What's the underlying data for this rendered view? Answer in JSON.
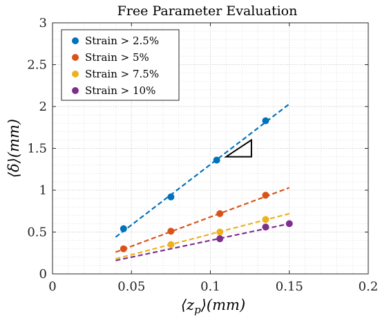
{
  "chart_data": {
    "type": "scatter",
    "title": "Free Parameter Evaluation",
    "xlabel": "⟨z_p⟩(mm)",
    "ylabel": "⟨δ⟩(mm)",
    "xlim": [
      0,
      0.2
    ],
    "ylim": [
      0,
      3
    ],
    "x_ticks": [
      "0",
      "0.05",
      "0.1",
      "0.15",
      "0.2"
    ],
    "y_ticks": [
      "0",
      "0.5",
      "1",
      "1.5",
      "2",
      "2.5",
      "3"
    ],
    "grid": "major and minor, dotted",
    "legend_position": "top-left",
    "series": [
      {
        "name": "Strain > 2.5%",
        "color": "#0072BD",
        "points": [
          [
            0.045,
            0.54
          ],
          [
            0.075,
            0.92
          ],
          [
            0.104,
            1.36
          ],
          [
            0.135,
            1.83
          ]
        ],
        "fit": [
          [
            0.04,
            0.44
          ],
          [
            0.15,
            2.03
          ]
        ]
      },
      {
        "name": "Strain > 5%",
        "color": "#D95319",
        "points": [
          [
            0.045,
            0.3
          ],
          [
            0.075,
            0.51
          ],
          [
            0.106,
            0.72
          ],
          [
            0.135,
            0.94
          ]
        ],
        "fit": [
          [
            0.04,
            0.26
          ],
          [
            0.15,
            1.03
          ]
        ]
      },
      {
        "name": "Strain > 7.5%",
        "color": "#EDB120",
        "points": [
          [
            0.075,
            0.35
          ],
          [
            0.106,
            0.5
          ],
          [
            0.135,
            0.65
          ]
        ],
        "fit": [
          [
            0.04,
            0.18
          ],
          [
            0.15,
            0.72
          ]
        ]
      },
      {
        "name": "Strain > 10%",
        "color": "#7E2F8E",
        "points": [
          [
            0.106,
            0.42
          ],
          [
            0.135,
            0.56
          ],
          [
            0.15,
            0.6
          ]
        ],
        "fit": [
          [
            0.04,
            0.16
          ],
          [
            0.15,
            0.6
          ]
        ]
      }
    ],
    "slope_triangle": [
      [
        0.11,
        1.4
      ],
      [
        0.126,
        1.4
      ],
      [
        0.126,
        1.6
      ]
    ]
  }
}
